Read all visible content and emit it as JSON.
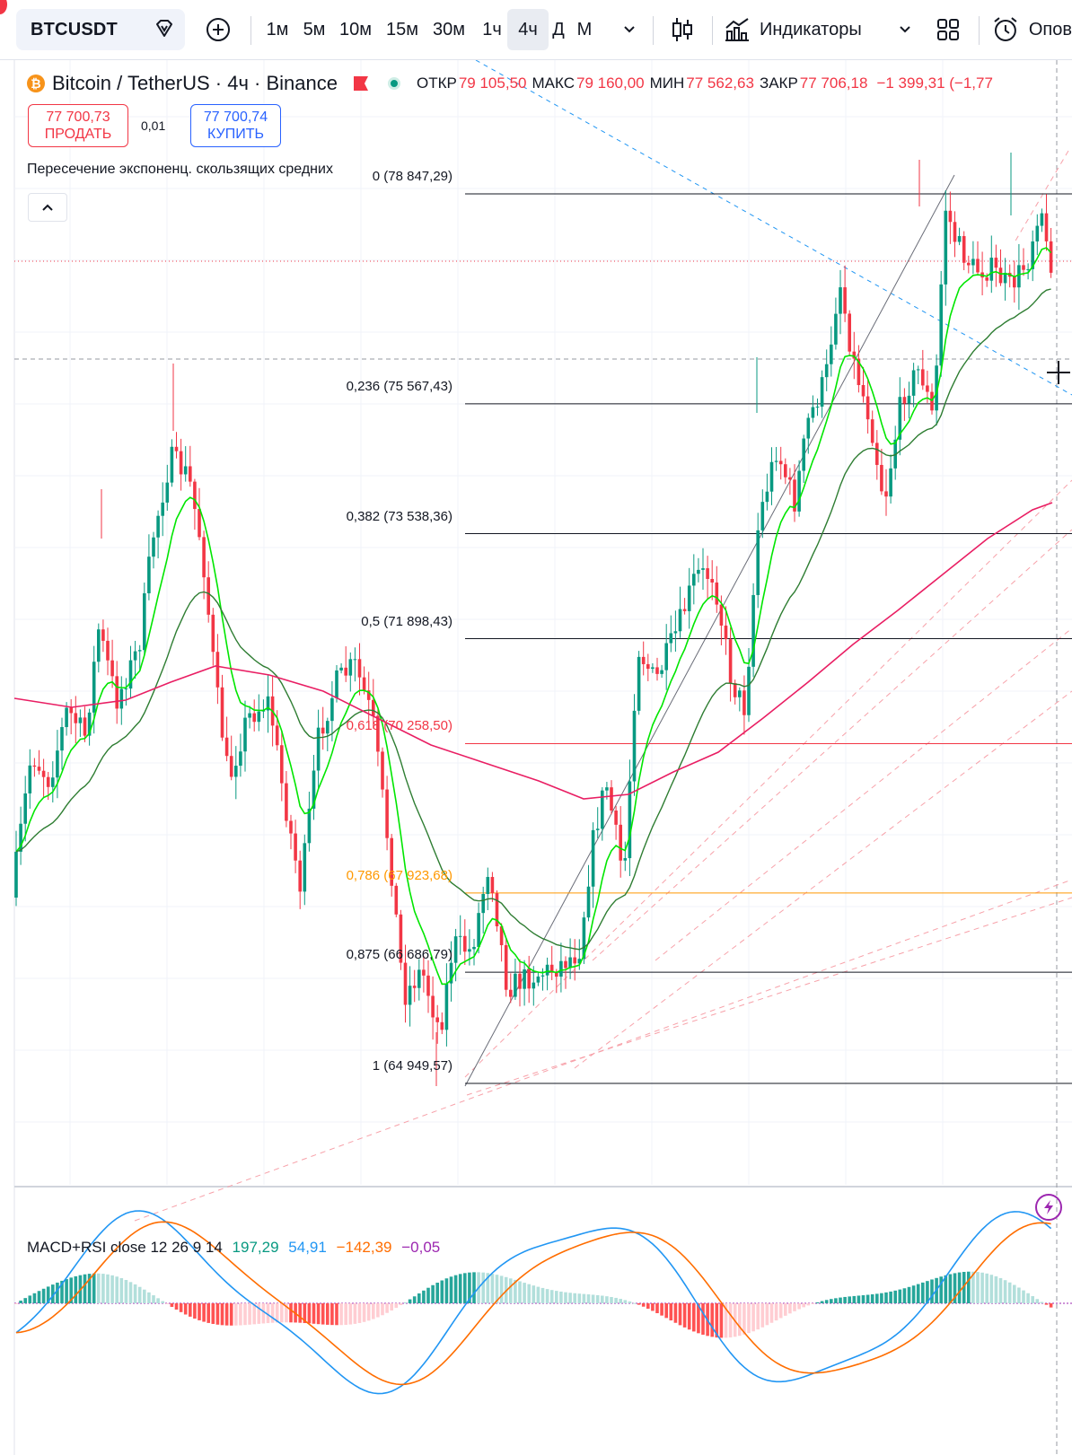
{
  "toolbar": {
    "symbol": "BTCUSDT",
    "timeframes": [
      "1м",
      "5м",
      "10м",
      "15м",
      "30м",
      "1ч",
      "4ч",
      "Д",
      "М"
    ],
    "active_timeframe": "4ч",
    "indicators_label": "Индикаторы",
    "alerts_label": "Опов"
  },
  "legend": {
    "coin_glyph": "₿",
    "title": "Bitcoin / TetherUS · 4ч · Binance",
    "open_label": "ОТКР",
    "open_value": "79 105,50",
    "high_label": "МАКС",
    "high_value": "79 160,00",
    "low_label": "МИН",
    "low_value": "77 562,63",
    "close_label": "ЗАКР",
    "close_value": "77 706,18",
    "change": "−1 399,31 (−1,77"
  },
  "trade": {
    "sell_price": "77 700,73",
    "sell_label": "ПРОДАТЬ",
    "spread": "0,01",
    "buy_price": "77 700,74",
    "buy_label": "КУПИТЬ"
  },
  "indicator_title": "Пересечение экспоненц. скользящих средних",
  "fib_levels": [
    {
      "label": "0 (78 847,29)",
      "price": 78847.29,
      "color": "#131722"
    },
    {
      "label": "0,236 (75 567,43)",
      "price": 75567.43,
      "color": "#131722"
    },
    {
      "label": "0,382 (73 538,36)",
      "price": 73538.36,
      "color": "#131722"
    },
    {
      "label": "0,5 (71 898,43)",
      "price": 71898.43,
      "color": "#131722"
    },
    {
      "label": "0,618 (70 258,50)",
      "price": 70258.5,
      "color": "#f23645"
    },
    {
      "label": "0,786 (67 923,68)",
      "price": 67923.68,
      "color": "#ff9800"
    },
    {
      "label": "0,875 (66 686,79)",
      "price": 66686.79,
      "color": "#131722"
    },
    {
      "label": "1 (64 949,57)",
      "price": 64949.57,
      "color": "#131722"
    }
  ],
  "macd_legend": {
    "name": "MACD+RSI close 12 26 9 14",
    "v1": "197,29",
    "v1_color": "#089981",
    "v2": "54,91",
    "v2_color": "#2196f3",
    "v3": "−142,39",
    "v3_color": "#ff6d00",
    "v4": "−0,05",
    "v4_color": "#9c27b0"
  },
  "colors": {
    "up": "#089981",
    "down": "#f23645",
    "ema_fast": "#00e600",
    "ema_slow": "#2e7d32",
    "ema_long": "#e91e63",
    "macd_line": "#2196f3",
    "signal_line": "#ff6d00"
  },
  "chart_data": {
    "type": "candlestick",
    "symbol": "BTCUSDT",
    "interval": "4ч",
    "candles_approx": [
      [
        69200,
        69900,
        68500,
        69700
      ],
      [
        69700,
        70700,
        69300,
        70400
      ],
      [
        70400,
        71200,
        69700,
        70900
      ],
      [
        70900,
        71500,
        70300,
        70600
      ],
      [
        70600,
        71000,
        69700,
        70100
      ],
      [
        70100,
        70800,
        69500,
        70500
      ],
      [
        70500,
        71600,
        70200,
        71400
      ],
      [
        71400,
        72600,
        71000,
        72200
      ],
      [
        72200,
        72700,
        71000,
        71400
      ],
      [
        71400,
        71800,
        70300,
        70800
      ],
      [
        70800,
        71300,
        70300,
        71000
      ],
      [
        71000,
        72300,
        70800,
        72000
      ],
      [
        72000,
        73600,
        71800,
        73200
      ],
      [
        73200,
        74900,
        73000,
        74500
      ],
      [
        74500,
        75200,
        73800,
        74100
      ],
      [
        74100,
        74600,
        73300,
        73700
      ],
      [
        73700,
        74300,
        72100,
        72500
      ],
      [
        72500,
        72900,
        71000,
        71200
      ],
      [
        71200,
        71600,
        69400,
        69800
      ],
      [
        69800,
        70700,
        69200,
        70400
      ],
      [
        70400,
        70800,
        69100,
        69400
      ],
      [
        69400,
        70100,
        68700,
        69900
      ],
      [
        69900,
        70900,
        69600,
        70600
      ],
      [
        70600,
        70900,
        69700,
        70100
      ],
      [
        70100,
        70500,
        68600,
        69000
      ],
      [
        69000,
        69400,
        67500,
        67900
      ],
      [
        67900,
        68400,
        67400,
        68100
      ],
      [
        68100,
        69300,
        67900,
        69000
      ],
      [
        69000,
        70300,
        68800,
        70100
      ],
      [
        70100,
        71100,
        69700,
        70700
      ],
      [
        70700,
        71500,
        70300,
        71100
      ],
      [
        71100,
        71600,
        70000,
        70300
      ],
      [
        70300,
        70800,
        68600,
        68900
      ],
      [
        68900,
        69200,
        67200,
        67500
      ],
      [
        67500,
        67800,
        65800,
        66100
      ],
      [
        66100,
        66800,
        65300,
        66400
      ],
      [
        66400,
        67000,
        65700,
        66800
      ],
      [
        66800,
        67100,
        64950,
        65600
      ],
      [
        65600,
        66900,
        65400,
        66700
      ],
      [
        66700,
        67600,
        66300,
        67300
      ],
      [
        67300,
        68200,
        66900,
        67900
      ],
      [
        67900,
        68500,
        66700,
        67000
      ],
      [
        67000,
        67400,
        65900,
        66400
      ],
      [
        66400,
        67100,
        65700,
        66900
      ],
      [
        66900,
        67500,
        66300,
        67000
      ],
      [
        67000,
        67300,
        66400,
        66600
      ],
      [
        66600,
        67200,
        66200,
        67000
      ],
      [
        67000,
        68300,
        66800,
        68100
      ],
      [
        68100,
        69300,
        67900,
        69100
      ],
      [
        69100,
        70100,
        68600,
        69800
      ],
      [
        69800,
        69900,
        68200,
        68500
      ],
      [
        68500,
        70600,
        68400,
        70400
      ],
      [
        70400,
        72000,
        70300,
        71800
      ],
      [
        71800,
        72400,
        71300,
        71900
      ],
      [
        71900,
        72600,
        71500,
        72400
      ],
      [
        72400,
        73200,
        71800,
        72100
      ],
      [
        72100,
        72500,
        71500,
        71900
      ],
      [
        71900,
        73800,
        71800,
        73600
      ],
      [
        73600,
        74200,
        72800,
        73100
      ],
      [
        73100,
        73400,
        71600,
        71900
      ],
      [
        71900,
        72200,
        70700,
        71100
      ],
      [
        71100,
        71500,
        70500,
        71300
      ],
      [
        71300,
        73800,
        71100,
        73500
      ],
      [
        73500,
        75100,
        73300,
        74900
      ],
      [
        74900,
        75800,
        74400,
        75000
      ],
      [
        75000,
        75600,
        73800,
        74200
      ],
      [
        74200,
        74800,
        73600,
        74600
      ],
      [
        74600,
        77200,
        74500,
        76900
      ],
      [
        76900,
        77600,
        76100,
        76400
      ],
      [
        76400,
        76800,
        75300,
        75600
      ],
      [
        75600,
        75900,
        74600,
        74900
      ],
      [
        74900,
        76000,
        74700,
        75800
      ],
      [
        75800,
        76600,
        75100,
        76200
      ],
      [
        76200,
        76400,
        75000,
        75400
      ],
      [
        75400,
        78900,
        75300,
        78500
      ],
      [
        78500,
        79000,
        77300,
        77600
      ],
      [
        77600,
        78200,
        77100,
        77900
      ],
      [
        77900,
        78300,
        77200,
        77500
      ],
      [
        77500,
        77900,
        77000,
        77600
      ],
      [
        77600,
        79160,
        77500,
        79105
      ],
      [
        79105,
        79160,
        77562,
        77706
      ]
    ],
    "annotations": [
      "Fibonacci retracement 1 → 0 from 64 949,57 to 78 847,29",
      "trendlines",
      "EMA crossover"
    ],
    "y_range_approx": [
      62500,
      80600
    ]
  }
}
